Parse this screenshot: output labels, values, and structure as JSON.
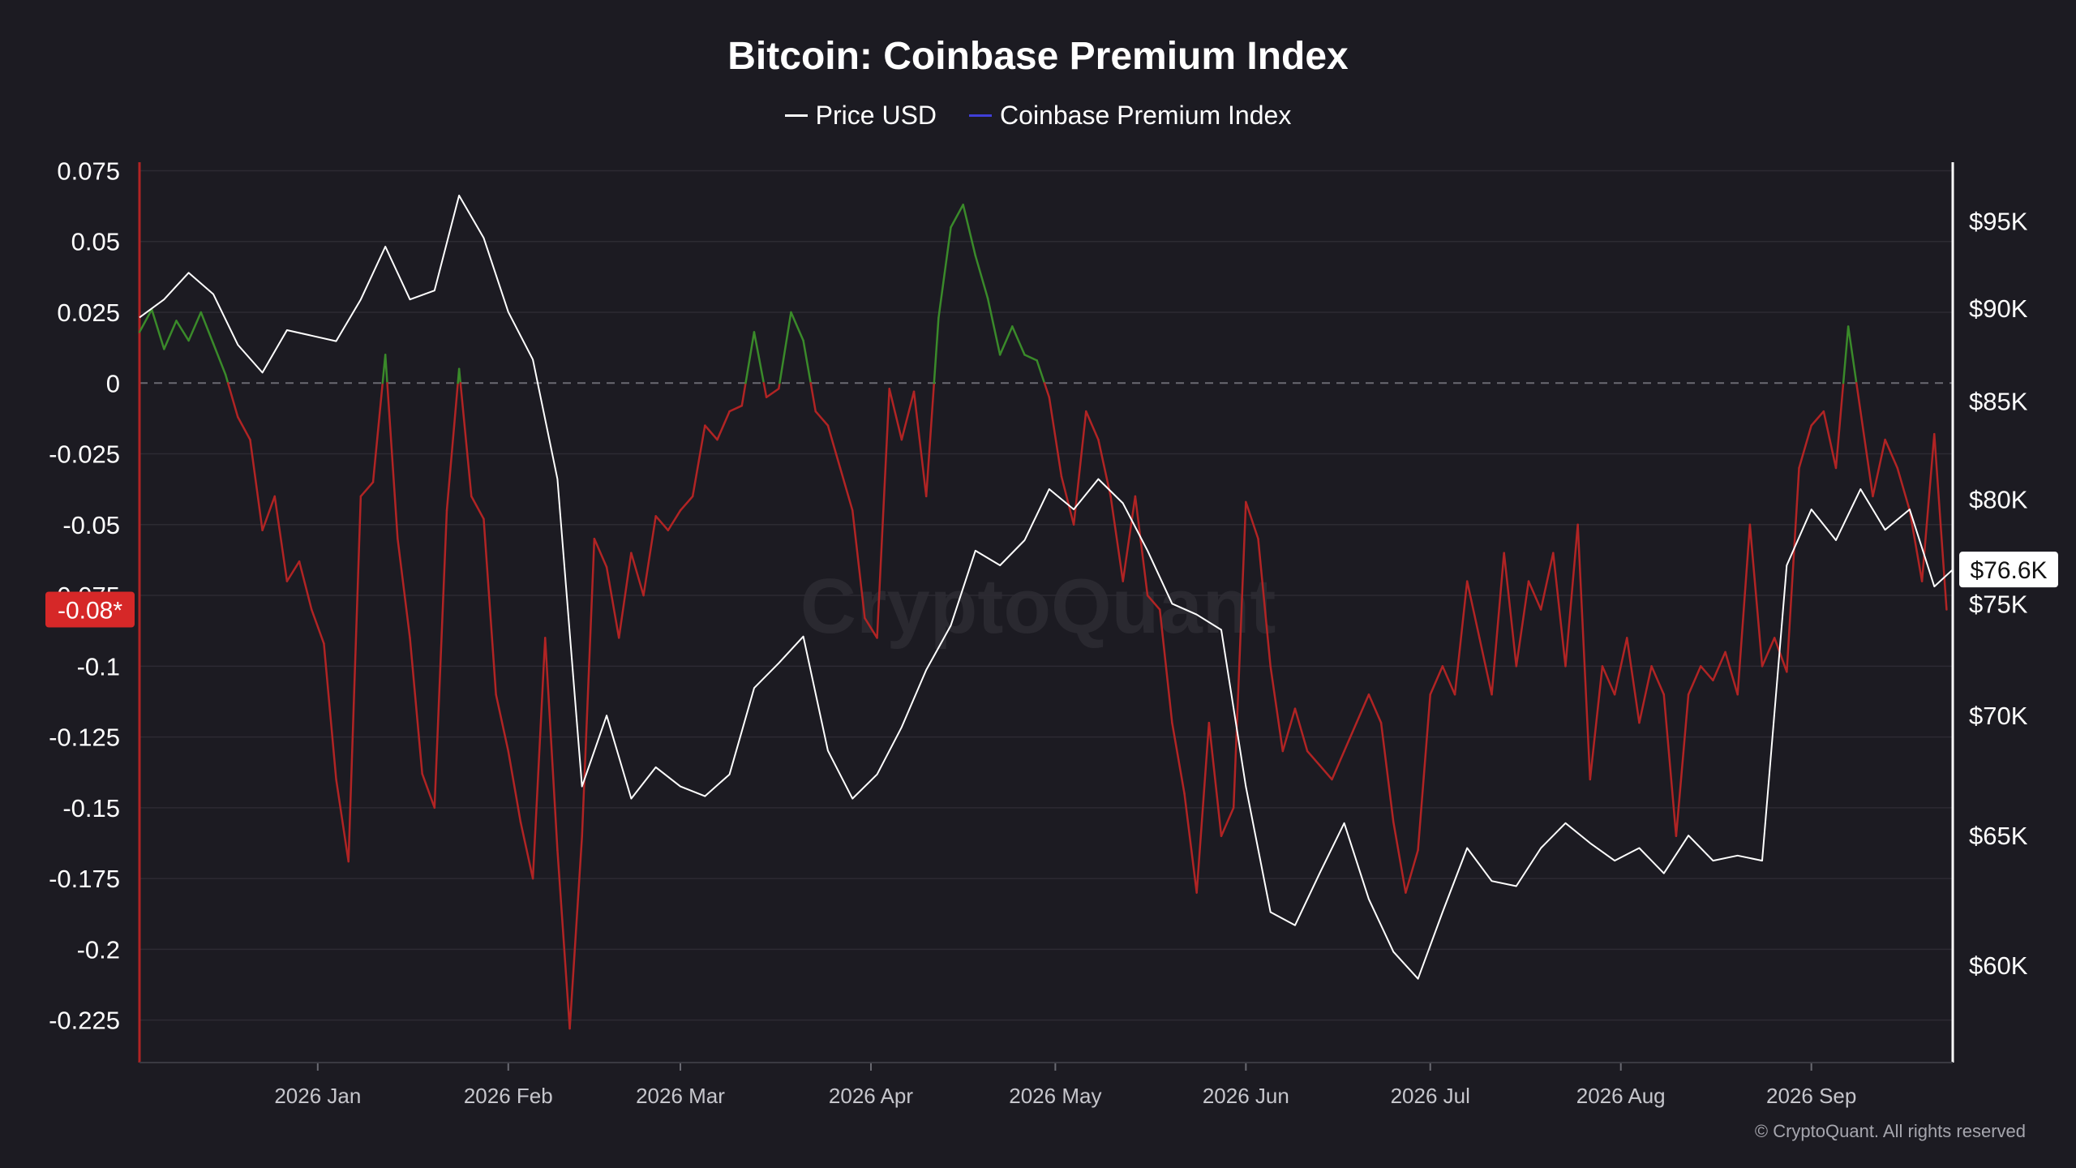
{
  "title": "Bitcoin: Coinbase Premium Index",
  "legend": [
    {
      "label": "Price USD",
      "color": "#ffffff"
    },
    {
      "label": "Coinbase Premium Index",
      "color": "#3f3fd8"
    }
  ],
  "watermark": "CryptoQuant",
  "copyright": "© CryptoQuant. All rights reserved",
  "current_index_label": "-0.08*",
  "current_price_label": "$76.6K",
  "colors": {
    "background": "#1c1b22",
    "positive": "#3a8a2a",
    "negative": "#b12424",
    "price": "#ffffff",
    "left_axis": "#b12424",
    "right_axis": "#ffffff",
    "badge_bg": "#d62828"
  },
  "chart_data": {
    "type": "line",
    "title": "Bitcoin: Coinbase Premium Index",
    "x_start": "2025-12-03",
    "x_end": "2026-09-24",
    "x_ticks": [
      "2026 Jan",
      "2026 Feb",
      "2026 Mar",
      "2026 Apr",
      "2026 May",
      "2026 Jun",
      "2026 Jul",
      "2026 Aug",
      "2026 Sep"
    ],
    "left_axis": {
      "ticks": [
        "0.075",
        "0.05",
        "0.025",
        "0",
        "-0.025",
        "-0.05",
        "-0.075",
        "-0.1",
        "-0.125",
        "-0.15",
        "-0.175",
        "-0.2",
        "-0.225"
      ],
      "range": [
        -0.24,
        0.078
      ]
    },
    "right_axis": {
      "ticks": [
        "$95K",
        "$90K",
        "$85K",
        "$80K",
        "$75K",
        "$70K",
        "$65K",
        "$60K"
      ],
      "range": [
        56500,
        98500
      ],
      "scale": "log"
    },
    "grid": true,
    "zero_line": "dashed",
    "series": [
      {
        "name": "Coinbase Premium Index",
        "axis": "left",
        "coloring": "green above 0, red below 0",
        "x": [
          "2025-12-03",
          "2025-12-05",
          "2025-12-07",
          "2025-12-09",
          "2025-12-11",
          "2025-12-13",
          "2025-12-15",
          "2025-12-17",
          "2025-12-19",
          "2025-12-21",
          "2025-12-23",
          "2025-12-25",
          "2025-12-27",
          "2025-12-29",
          "2025-12-31",
          "2026-01-02",
          "2026-01-04",
          "2026-01-06",
          "2026-01-08",
          "2026-01-10",
          "2026-01-12",
          "2026-01-14",
          "2026-01-16",
          "2026-01-18",
          "2026-01-20",
          "2026-01-22",
          "2026-01-24",
          "2026-01-26",
          "2026-01-28",
          "2026-01-30",
          "2026-02-01",
          "2026-02-03",
          "2026-02-05",
          "2026-02-07",
          "2026-02-09",
          "2026-02-11",
          "2026-02-13",
          "2026-02-15",
          "2026-02-17",
          "2026-02-19",
          "2026-02-21",
          "2026-02-23",
          "2026-02-25",
          "2026-02-27",
          "2026-03-01",
          "2026-03-03",
          "2026-03-05",
          "2026-03-07",
          "2026-03-09",
          "2026-03-11",
          "2026-03-13",
          "2026-03-15",
          "2026-03-17",
          "2026-03-19",
          "2026-03-21",
          "2026-03-23",
          "2026-03-25",
          "2026-03-27",
          "2026-03-29",
          "2026-03-31",
          "2026-04-02",
          "2026-04-04",
          "2026-04-06",
          "2026-04-08",
          "2026-04-10",
          "2026-04-12",
          "2026-04-14",
          "2026-04-16",
          "2026-04-18",
          "2026-04-20",
          "2026-04-22",
          "2026-04-24",
          "2026-04-26",
          "2026-04-28",
          "2026-04-30",
          "2026-05-02",
          "2026-05-04",
          "2026-05-06",
          "2026-05-08",
          "2026-05-10",
          "2026-05-12",
          "2026-05-14",
          "2026-05-16",
          "2026-05-18",
          "2026-05-20",
          "2026-05-22",
          "2026-05-24",
          "2026-05-26",
          "2026-05-28",
          "2026-05-30",
          "2026-06-01",
          "2026-06-03",
          "2026-06-05",
          "2026-06-07",
          "2026-06-09",
          "2026-06-11",
          "2026-06-13",
          "2026-06-15",
          "2026-06-17",
          "2026-06-19",
          "2026-06-21",
          "2026-06-23",
          "2026-06-25",
          "2026-06-27",
          "2026-06-29",
          "2026-07-01",
          "2026-07-03",
          "2026-07-05",
          "2026-07-07",
          "2026-07-09",
          "2026-07-11",
          "2026-07-13",
          "2026-07-15",
          "2026-07-17",
          "2026-07-19",
          "2026-07-21",
          "2026-07-23",
          "2026-07-25",
          "2026-07-27",
          "2026-07-29",
          "2026-07-31",
          "2026-08-02",
          "2026-08-04",
          "2026-08-06",
          "2026-08-08",
          "2026-08-10",
          "2026-08-12",
          "2026-08-14",
          "2026-08-16",
          "2026-08-18",
          "2026-08-20",
          "2026-08-22",
          "2026-08-24",
          "2026-08-26",
          "2026-08-28",
          "2026-08-30",
          "2026-09-01",
          "2026-09-03",
          "2026-09-05",
          "2026-09-07",
          "2026-09-09",
          "2026-09-11",
          "2026-09-13",
          "2026-09-15",
          "2026-09-17",
          "2026-09-19",
          "2026-09-21",
          "2026-09-23"
        ],
        "values": [
          0.018,
          0.026,
          0.012,
          0.022,
          0.015,
          0.025,
          0.014,
          0.003,
          -0.012,
          -0.02,
          -0.052,
          -0.04,
          -0.07,
          -0.063,
          -0.08,
          -0.092,
          -0.14,
          -0.169,
          -0.04,
          -0.035,
          0.01,
          -0.055,
          -0.09,
          -0.138,
          -0.15,
          -0.045,
          0.005,
          -0.04,
          -0.048,
          -0.11,
          -0.13,
          -0.155,
          -0.175,
          -0.09,
          -0.165,
          -0.228,
          -0.16,
          -0.055,
          -0.065,
          -0.09,
          -0.06,
          -0.075,
          -0.047,
          -0.052,
          -0.045,
          -0.04,
          -0.015,
          -0.02,
          -0.01,
          -0.008,
          0.018,
          -0.005,
          -0.002,
          0.025,
          0.015,
          -0.01,
          -0.015,
          -0.03,
          -0.045,
          -0.083,
          -0.09,
          -0.002,
          -0.02,
          -0.003,
          -0.04,
          0.023,
          0.055,
          0.063,
          0.045,
          0.03,
          0.01,
          0.02,
          0.01,
          0.008,
          -0.005,
          -0.033,
          -0.05,
          -0.01,
          -0.02,
          -0.04,
          -0.07,
          -0.04,
          -0.075,
          -0.08,
          -0.12,
          -0.145,
          -0.18,
          -0.12,
          -0.16,
          -0.15,
          -0.042,
          -0.055,
          -0.1,
          -0.13,
          -0.115,
          -0.13,
          -0.135,
          -0.14,
          -0.13,
          -0.12,
          -0.11,
          -0.12,
          -0.155,
          -0.18,
          -0.165,
          -0.11,
          -0.1,
          -0.11,
          -0.07,
          -0.09,
          -0.11,
          -0.06,
          -0.1,
          -0.07,
          -0.08,
          -0.06,
          -0.1,
          -0.05,
          -0.14,
          -0.1,
          -0.11,
          -0.09,
          -0.12,
          -0.1,
          -0.11,
          -0.16,
          -0.11,
          -0.1,
          -0.105,
          -0.095,
          -0.11,
          -0.05,
          -0.1,
          -0.09,
          -0.102,
          -0.03,
          -0.015,
          -0.01,
          -0.03,
          0.02,
          -0.01,
          -0.04,
          -0.02,
          -0.03,
          -0.045,
          -0.07,
          -0.018,
          -0.08
        ]
      },
      {
        "name": "Price USD",
        "axis": "right",
        "x": [
          "2025-12-03",
          "2025-12-07",
          "2025-12-11",
          "2025-12-15",
          "2025-12-19",
          "2025-12-23",
          "2025-12-27",
          "2025-12-31",
          "2026-01-04",
          "2026-01-08",
          "2026-01-12",
          "2026-01-16",
          "2026-01-20",
          "2026-01-24",
          "2026-01-28",
          "2026-02-01",
          "2026-02-05",
          "2026-02-09",
          "2026-02-13",
          "2026-02-17",
          "2026-02-21",
          "2026-02-25",
          "2026-03-01",
          "2026-03-05",
          "2026-03-09",
          "2026-03-13",
          "2026-03-17",
          "2026-03-21",
          "2026-03-25",
          "2026-03-29",
          "2026-04-02",
          "2026-04-06",
          "2026-04-10",
          "2026-04-14",
          "2026-04-18",
          "2026-04-22",
          "2026-04-26",
          "2026-04-30",
          "2026-05-04",
          "2026-05-08",
          "2026-05-12",
          "2026-05-16",
          "2026-05-20",
          "2026-05-24",
          "2026-05-28",
          "2026-06-01",
          "2026-06-05",
          "2026-06-09",
          "2026-06-13",
          "2026-06-17",
          "2026-06-21",
          "2026-06-25",
          "2026-06-29",
          "2026-07-03",
          "2026-07-07",
          "2026-07-11",
          "2026-07-15",
          "2026-07-19",
          "2026-07-23",
          "2026-07-27",
          "2026-07-31",
          "2026-08-04",
          "2026-08-08",
          "2026-08-12",
          "2026-08-16",
          "2026-08-20",
          "2026-08-24",
          "2026-08-28",
          "2026-09-01",
          "2026-09-05",
          "2026-09-09",
          "2026-09-13",
          "2026-09-17",
          "2026-09-21",
          "2026-09-24"
        ],
        "values": [
          89500,
          90500,
          92000,
          90800,
          88000,
          86500,
          88800,
          88500,
          88200,
          90500,
          93500,
          90500,
          91000,
          96500,
          94000,
          89800,
          87200,
          81000,
          67000,
          70000,
          66500,
          67800,
          67000,
          66600,
          67500,
          71200,
          72300,
          73500,
          68500,
          66500,
          67500,
          69500,
          72000,
          74000,
          77500,
          76800,
          78000,
          80500,
          79500,
          81000,
          79800,
          77500,
          75000,
          74500,
          73800,
          67000,
          62000,
          61500,
          63500,
          65500,
          62500,
          60500,
          59500,
          62000,
          64500,
          63200,
          63000,
          64500,
          65500,
          64700,
          64000,
          64500,
          63500,
          65000,
          64000,
          64200,
          64000,
          76800,
          79500,
          78000,
          80500,
          78500,
          79500,
          75800,
          76600
        ]
      }
    ]
  }
}
